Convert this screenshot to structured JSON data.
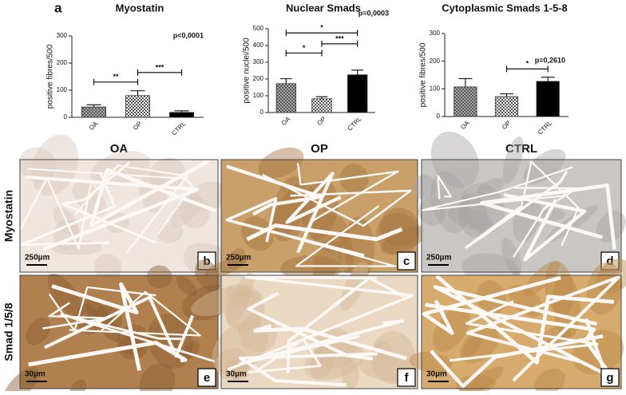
{
  "figure": {
    "panel_label": "a",
    "columns": [
      "OA",
      "OP",
      "CTRL"
    ],
    "rows": [
      "Myostatin",
      "Smad 1/5/8"
    ],
    "panels": [
      {
        "letter": "b",
        "scale": "250µm"
      },
      {
        "letter": "c",
        "scale": "250µm"
      },
      {
        "letter": "d",
        "scale": "250µm"
      },
      {
        "letter": "e",
        "scale": "30µm"
      },
      {
        "letter": "f",
        "scale": "30µm"
      },
      {
        "letter": "g",
        "scale": "30µm"
      }
    ]
  },
  "chart_data": [
    {
      "type": "bar",
      "title": "Myostatin",
      "y_label": "positive fibres/500",
      "annotation": "p<0,0001",
      "categories": [
        "OA",
        "OP",
        "CTRL"
      ],
      "values": [
        38,
        80,
        18
      ],
      "errors": [
        8,
        18,
        6
      ],
      "colors": [
        "#9a9a9a",
        "#c8c8c8",
        "#000000"
      ],
      "patterns": [
        "crosshatch",
        "checker",
        "solid"
      ],
      "ylim": [
        0,
        300
      ],
      "yticks": [
        0,
        100,
        200,
        300
      ],
      "brackets": [
        {
          "between": [
            "OA",
            "OP"
          ],
          "y": 130,
          "label": "**"
        },
        {
          "between": [
            "OP",
            "CTRL"
          ],
          "y": 165,
          "label": "***"
        }
      ]
    },
    {
      "type": "bar",
      "title": "Nuclear Smads",
      "y_label": "positive nuclei/500",
      "annotation": "p=0,0003",
      "categories": [
        "OA",
        "OP",
        "CTRL"
      ],
      "values": [
        172,
        82,
        225
      ],
      "errors": [
        30,
        12,
        28
      ],
      "colors": [
        "#9a9a9a",
        "#c8c8c8",
        "#000000"
      ],
      "patterns": [
        "crosshatch",
        "checker",
        "solid"
      ],
      "ylim": [
        0,
        500
      ],
      "yticks": [
        0,
        100,
        200,
        300,
        400,
        500
      ],
      "brackets": [
        {
          "between": [
            "OA",
            "OP"
          ],
          "y": 355,
          "label": "*"
        },
        {
          "between": [
            "OP",
            "CTRL"
          ],
          "y": 410,
          "label": "***"
        },
        {
          "between": [
            "OA",
            "CTRL"
          ],
          "y": 475,
          "label": "*"
        }
      ]
    },
    {
      "type": "bar",
      "title": "Cytoplasmic Smads 1-5-8",
      "y_label": "positive fibres/500",
      "annotation": "p=0,2610",
      "categories": [
        "OA",
        "OP",
        "CTRL"
      ],
      "values": [
        107,
        72,
        127
      ],
      "errors": [
        30,
        10,
        15
      ],
      "colors": [
        "#9a9a9a",
        "#c8c8c8",
        "#000000"
      ],
      "patterns": [
        "crosshatch",
        "checker",
        "solid"
      ],
      "ylim": [
        0,
        300
      ],
      "yticks": [
        0,
        100,
        200,
        300
      ],
      "brackets": [
        {
          "between": [
            "OP",
            "CTRL"
          ],
          "y": 172,
          "label": "*"
        }
      ]
    }
  ]
}
